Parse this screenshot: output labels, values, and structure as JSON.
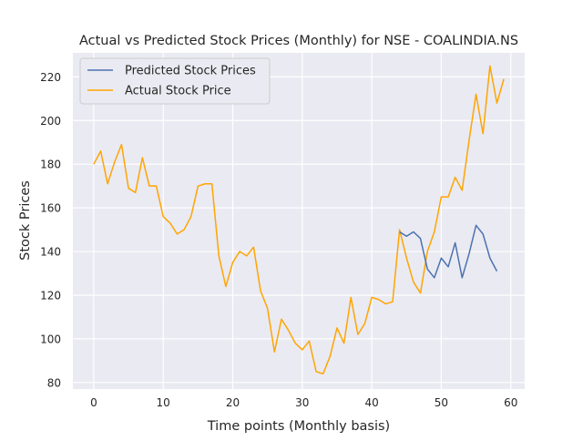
{
  "chart_data": {
    "type": "line",
    "title": "Actual vs Predicted Stock Prices (Monthly) for NSE - COALINDIA.NS",
    "xlabel": "Time points (Monthly basis)",
    "ylabel": "Stock Prices",
    "xlim": [
      -3,
      62
    ],
    "ylim": [
      77,
      231
    ],
    "xticks": [
      0,
      10,
      20,
      30,
      40,
      50,
      60
    ],
    "yticks": [
      80,
      100,
      120,
      140,
      160,
      180,
      200,
      220
    ],
    "grid": true,
    "legend_position": "top-left",
    "background_color": "#eaeaf2",
    "series": [
      {
        "name": "Predicted Stock Prices",
        "color": "#4c72b0",
        "x": [
          44,
          45,
          46,
          47,
          48,
          49,
          50,
          51,
          52,
          53,
          54,
          55,
          56,
          57,
          58
        ],
        "y": [
          149,
          147,
          149,
          146,
          132,
          128,
          137,
          133,
          144,
          128,
          139,
          152,
          148,
          137,
          131
        ]
      },
      {
        "name": "Actual Stock Price",
        "color": "#ffa500",
        "x": [
          0,
          1,
          2,
          3,
          4,
          5,
          6,
          7,
          8,
          9,
          10,
          11,
          12,
          13,
          14,
          15,
          16,
          17,
          18,
          19,
          20,
          21,
          22,
          23,
          24,
          25,
          26,
          27,
          28,
          29,
          30,
          31,
          32,
          33,
          34,
          35,
          36,
          37,
          38,
          39,
          40,
          41,
          42,
          43,
          44,
          45,
          46,
          47,
          48,
          49,
          50,
          51,
          52,
          53,
          54,
          55,
          56,
          57,
          58,
          59
        ],
        "y": [
          180,
          186,
          171,
          181,
          189,
          169,
          167,
          183,
          170,
          170,
          156,
          153,
          148,
          150,
          156,
          170,
          171,
          171,
          138,
          124,
          135,
          140,
          138,
          142,
          122,
          114,
          94,
          109,
          104,
          98,
          95,
          99,
          85,
          84,
          92,
          105,
          98,
          119,
          102,
          107,
          119,
          118,
          116,
          117,
          150,
          137,
          126,
          121,
          140,
          149,
          165,
          165,
          174,
          168,
          191,
          212,
          194,
          225,
          208,
          219
        ]
      }
    ]
  }
}
